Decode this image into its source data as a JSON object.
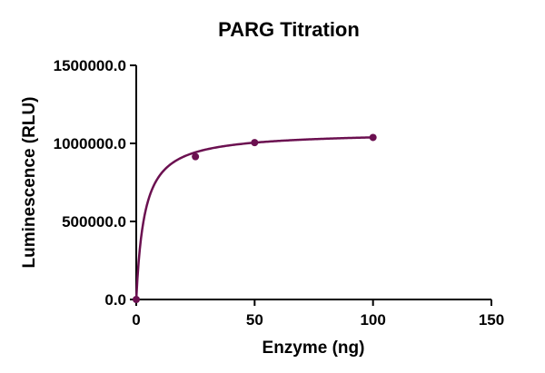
{
  "chart_data": {
    "type": "scatter",
    "title": "PARG Titration",
    "xlabel": "Enzyme (ng)",
    "ylabel": "Luminescence (RLU)",
    "xlim": [
      0,
      150
    ],
    "ylim": [
      0,
      1500000
    ],
    "x_ticks": [
      0,
      50,
      100,
      150
    ],
    "x_tick_labels": [
      "0",
      "50",
      "100",
      "150"
    ],
    "y_ticks": [
      0,
      500000,
      1000000,
      1500000
    ],
    "y_tick_labels": [
      "0.0",
      "500000.0",
      "1000000.0",
      "1500000.0"
    ],
    "series": [
      {
        "x": [
          0,
          25,
          50,
          100
        ],
        "y": [
          0,
          915000,
          1005000,
          1038000
        ],
        "fit": "hyperbola",
        "fit_params": {
          "Bmax": 1075000,
          "Kd": 3.5
        }
      }
    ],
    "grid": false,
    "colors": {
      "series": "#6b1050",
      "axis": "#000000"
    }
  }
}
